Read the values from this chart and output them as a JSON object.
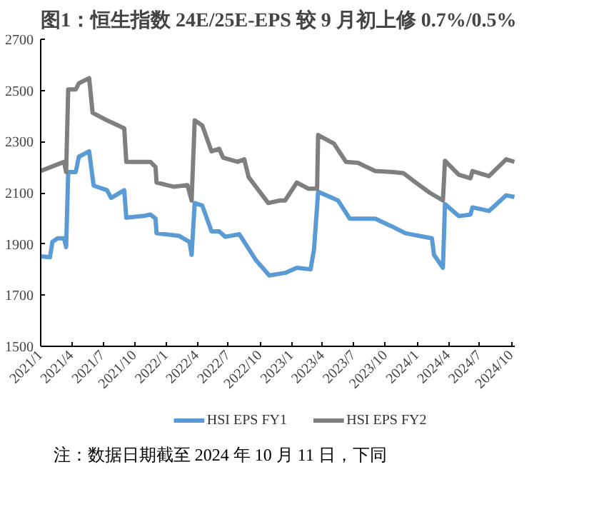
{
  "chart_data": {
    "type": "line",
    "title": "图1：恒生指数 24E/25E-EPS 较 9 月初上修 0.7%/0.5%",
    "annotations": [
      "注：数据日期截至 2024 年 10 月 11 日，下同"
    ],
    "xlim": [
      "2021-01-01",
      "2024-10-11"
    ],
    "xticks": [
      {
        "value": "2021-01-01",
        "label": "2021/1"
      },
      {
        "value": "2021-04-01",
        "label": "2021/4"
      },
      {
        "value": "2021-07-01",
        "label": "2021/7"
      },
      {
        "value": "2021-10-01",
        "label": "2021/10"
      },
      {
        "value": "2022-01-01",
        "label": "2022/1"
      },
      {
        "value": "2022-04-01",
        "label": "2022/4"
      },
      {
        "value": "2022-07-01",
        "label": "2022/7"
      },
      {
        "value": "2022-10-01",
        "label": "2022/10"
      },
      {
        "value": "2023-01-01",
        "label": "2023/1"
      },
      {
        "value": "2023-04-01",
        "label": "2023/4"
      },
      {
        "value": "2023-07-01",
        "label": "2023/7"
      },
      {
        "value": "2023-10-01",
        "label": "2023/10"
      },
      {
        "value": "2024-01-01",
        "label": "2024/1"
      },
      {
        "value": "2024-04-01",
        "label": "2024/4"
      },
      {
        "value": "2024-07-01",
        "label": "2024/7"
      },
      {
        "value": "2024-10-01",
        "label": "2024/10"
      }
    ],
    "ylim": [
      1500,
      2700
    ],
    "yticks": [
      1500,
      1700,
      1900,
      2100,
      2300,
      2500,
      2700
    ],
    "grid": false,
    "legend": "bottom",
    "marker": "none",
    "line_style": "solid",
    "series": [
      {
        "name": "HSI EPS FY1",
        "color": "#5b9bd5",
        "x": [
          "2021-01-01",
          "2021-01-28",
          "2021-02-04",
          "2021-02-19",
          "2021-03-10",
          "2021-03-16",
          "2021-03-22",
          "2021-04-13",
          "2021-04-22",
          "2021-05-22",
          "2021-06-04",
          "2021-07-13",
          "2021-07-25",
          "2021-09-01",
          "2021-09-07",
          "2021-10-25",
          "2021-11-16",
          "2021-12-01",
          "2021-12-04",
          "2022-02-07",
          "2022-03-10",
          "2022-03-16",
          "2022-03-25",
          "2022-04-16",
          "2022-05-13",
          "2022-06-04",
          "2022-06-22",
          "2022-08-02",
          "2022-09-19",
          "2022-10-28",
          "2022-12-13",
          "2023-01-16",
          "2023-02-25",
          "2023-03-07",
          "2023-03-19",
          "2023-05-16",
          "2023-06-19",
          "2023-09-01",
          "2023-10-19",
          "2023-11-28",
          "2024-02-13",
          "2024-02-19",
          "2024-03-16",
          "2024-03-22",
          "2024-05-01",
          "2024-06-04",
          "2024-06-10",
          "2024-07-28",
          "2024-09-16",
          "2024-10-10"
        ],
        "values": [
          1852,
          1848,
          1908,
          1922,
          1922,
          1888,
          2181,
          2181,
          2241,
          2262,
          2128,
          2110,
          2080,
          2110,
          2003,
          2009,
          2015,
          1999,
          1942,
          1932,
          1908,
          1858,
          2060,
          2050,
          1949,
          1949,
          1928,
          1938,
          1837,
          1777,
          1787,
          1807,
          1801,
          1878,
          2104,
          2070,
          1999,
          1999,
          1969,
          1942,
          1922,
          1858,
          1807,
          2056,
          2009,
          2015,
          2043,
          2029,
          2090,
          2084
        ]
      },
      {
        "name": "HSI EPS FY2",
        "color": "#7f7f7f",
        "x": [
          "2021-01-01",
          "2021-03-10",
          "2021-03-16",
          "2021-03-22",
          "2021-04-13",
          "2021-04-22",
          "2021-05-22",
          "2021-06-01",
          "2021-07-13",
          "2021-09-01",
          "2021-09-07",
          "2021-11-16",
          "2021-12-01",
          "2021-12-04",
          "2022-01-22",
          "2022-03-04",
          "2022-03-16",
          "2022-03-25",
          "2022-04-16",
          "2022-05-13",
          "2022-06-04",
          "2022-06-16",
          "2022-07-28",
          "2022-08-16",
          "2022-08-29",
          "2022-10-25",
          "2022-11-28",
          "2022-12-13",
          "2023-01-16",
          "2023-02-19",
          "2023-03-16",
          "2023-03-19",
          "2023-05-04",
          "2023-06-08",
          "2023-07-13",
          "2023-09-01",
          "2023-10-25",
          "2023-11-22",
          "2023-12-28",
          "2024-02-07",
          "2024-03-16",
          "2024-03-22",
          "2024-05-01",
          "2024-06-04",
          "2024-06-10",
          "2024-07-28",
          "2024-09-16",
          "2024-10-10"
        ],
        "values": [
          2185,
          2221,
          2181,
          2504,
          2504,
          2528,
          2548,
          2413,
          2383,
          2352,
          2221,
          2221,
          2201,
          2140,
          2124,
          2130,
          2070,
          2383,
          2363,
          2262,
          2272,
          2237,
          2221,
          2231,
          2161,
          2060,
          2070,
          2070,
          2140,
          2116,
          2116,
          2326,
          2292,
          2221,
          2217,
          2185,
          2181,
          2177,
          2140,
          2100,
          2070,
          2225,
          2171,
          2157,
          2185,
          2165,
          2231,
          2221
        ]
      }
    ]
  }
}
